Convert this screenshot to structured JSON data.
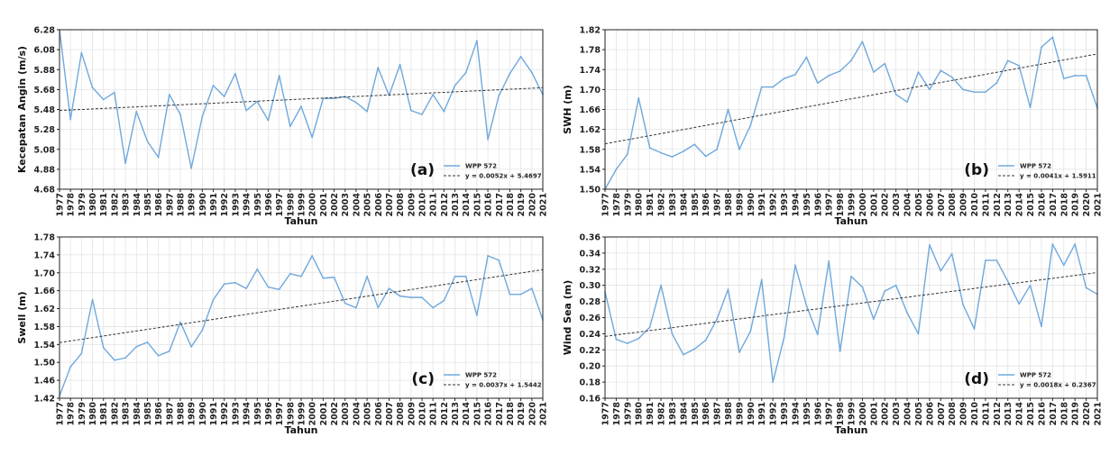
{
  "chart_data": [
    {
      "type": "line",
      "panel_label": "(a)",
      "xlabel": "Tahun",
      "ylabel": "Kecepatan Angin (m/s)",
      "ylim": [
        4.68,
        6.28
      ],
      "yticks": [
        4.68,
        4.88,
        5.08,
        5.28,
        5.48,
        5.68,
        5.88,
        6.08,
        6.28
      ],
      "ytick_labels": [
        "4.68",
        "4.88",
        "5.08",
        "5.28",
        "5.48",
        "5.68",
        "5.88",
        "6.08",
        "6.28"
      ],
      "grid": true,
      "legend_position": "lower-right",
      "series": [
        {
          "name": "WPP 572",
          "color": "#6fa8dc",
          "values": [
            6.28,
            5.38,
            6.05,
            5.7,
            5.58,
            5.65,
            4.94,
            5.46,
            5.16,
            5.0,
            5.63,
            5.43,
            4.89,
            5.41,
            5.72,
            5.61,
            5.84,
            5.47,
            5.56,
            5.37,
            5.82,
            5.31,
            5.51,
            5.2,
            5.59,
            5.59,
            5.61,
            5.55,
            5.46,
            5.9,
            5.62,
            5.93,
            5.47,
            5.43,
            5.63,
            5.46,
            5.72,
            5.85,
            6.17,
            5.18,
            5.62,
            5.84,
            6.01,
            5.85,
            5.63
          ]
        }
      ],
      "trend": {
        "label": "y = 0.0052x + 5.4697",
        "slope": 0.0052,
        "intercept": 5.4697
      }
    },
    {
      "type": "line",
      "panel_label": "(b)",
      "xlabel": "Tahun",
      "ylabel": "SWH (m)",
      "ylim": [
        1.5,
        1.82
      ],
      "yticks": [
        1.5,
        1.54,
        1.58,
        1.62,
        1.66,
        1.7,
        1.74,
        1.78,
        1.82
      ],
      "ytick_labels": [
        "1.50",
        "1.54",
        "1.58",
        "1.62",
        "1.66",
        "1.70",
        "1.74",
        "1.78",
        "1.82"
      ],
      "grid": true,
      "legend_position": "lower-right",
      "series": [
        {
          "name": "WPP 572",
          "color": "#6fa8dc",
          "values": [
            1.5,
            1.54,
            1.57,
            1.683,
            1.583,
            1.573,
            1.565,
            1.576,
            1.59,
            1.566,
            1.58,
            1.66,
            1.58,
            1.628,
            1.705,
            1.705,
            1.722,
            1.73,
            1.765,
            1.713,
            1.728,
            1.737,
            1.758,
            1.796,
            1.735,
            1.752,
            1.69,
            1.675,
            1.735,
            1.7,
            1.738,
            1.725,
            1.7,
            1.695,
            1.695,
            1.713,
            1.758,
            1.748,
            1.664,
            1.785,
            1.805,
            1.722,
            1.728,
            1.728,
            1.663
          ]
        }
      ],
      "trend": {
        "label": "y = 0.0041x + 1.5911",
        "slope": 0.0041,
        "intercept": 1.5911
      }
    },
    {
      "type": "line",
      "panel_label": "(c)",
      "xlabel": "Tahun",
      "ylabel": "Swell (m)",
      "ylim": [
        1.42,
        1.78
      ],
      "yticks": [
        1.42,
        1.46,
        1.5,
        1.54,
        1.58,
        1.62,
        1.66,
        1.7,
        1.74,
        1.78
      ],
      "ytick_labels": [
        "1.42",
        "1.46",
        "1.50",
        "1.54",
        "1.58",
        "1.62",
        "1.66",
        "1.70",
        "1.74",
        "1.78"
      ],
      "grid": true,
      "legend_position": "lower-right",
      "series": [
        {
          "name": "WPP 572",
          "color": "#6fa8dc",
          "values": [
            1.425,
            1.49,
            1.52,
            1.64,
            1.533,
            1.505,
            1.51,
            1.535,
            1.545,
            1.515,
            1.525,
            1.59,
            1.535,
            1.572,
            1.64,
            1.675,
            1.678,
            1.665,
            1.708,
            1.668,
            1.663,
            1.698,
            1.692,
            1.738,
            1.688,
            1.69,
            1.632,
            1.622,
            1.692,
            1.622,
            1.665,
            1.648,
            1.645,
            1.645,
            1.622,
            1.638,
            1.692,
            1.692,
            1.605,
            1.738,
            1.728,
            1.652,
            1.652,
            1.665,
            1.595
          ]
        }
      ],
      "trend": {
        "label": "y = 0.0037x + 1.5442",
        "slope": 0.0037,
        "intercept": 1.5442
      }
    },
    {
      "type": "line",
      "panel_label": "(d)",
      "xlabel": "Tahun",
      "ylabel": "Wind Sea (m)",
      "ylim": [
        0.16,
        0.36
      ],
      "yticks": [
        0.16,
        0.18,
        0.2,
        0.22,
        0.24,
        0.26,
        0.28,
        0.3,
        0.32,
        0.34,
        0.36
      ],
      "ytick_labels": [
        "0.16",
        "0.18",
        "0.20",
        "0.22",
        "0.24",
        "0.26",
        "0.28",
        "0.30",
        "0.32",
        "0.34",
        "0.36"
      ],
      "grid": true,
      "legend_position": "lower-right",
      "series": [
        {
          "name": "WPP 572",
          "color": "#6fa8dc",
          "values": [
            0.292,
            0.233,
            0.228,
            0.234,
            0.248,
            0.3,
            0.24,
            0.214,
            0.221,
            0.232,
            0.258,
            0.295,
            0.217,
            0.243,
            0.307,
            0.18,
            0.235,
            0.325,
            0.275,
            0.239,
            0.33,
            0.218,
            0.311,
            0.298,
            0.258,
            0.293,
            0.3,
            0.266,
            0.24,
            0.35,
            0.318,
            0.339,
            0.276,
            0.246,
            0.331,
            0.331,
            0.305,
            0.277,
            0.3,
            0.249,
            0.351,
            0.325,
            0.351,
            0.297,
            0.289
          ]
        }
      ],
      "trend": {
        "label": "y = 0.0018x + 0.2367",
        "slope": 0.0018,
        "intercept": 0.2367
      }
    }
  ],
  "years": [
    "1977",
    "1978",
    "1979",
    "1980",
    "1981",
    "1982",
    "1983",
    "1984",
    "1985",
    "1986",
    "1987",
    "1988",
    "1989",
    "1990",
    "1991",
    "1992",
    "1993",
    "1994",
    "1995",
    "1996",
    "1997",
    "1998",
    "1999",
    "2000",
    "2001",
    "2002",
    "2003",
    "2004",
    "2005",
    "2006",
    "2007",
    "2008",
    "2009",
    "2010",
    "2011",
    "2012",
    "2013",
    "2014",
    "2015",
    "2016",
    "2017",
    "2018",
    "2019",
    "2020",
    "2021"
  ]
}
